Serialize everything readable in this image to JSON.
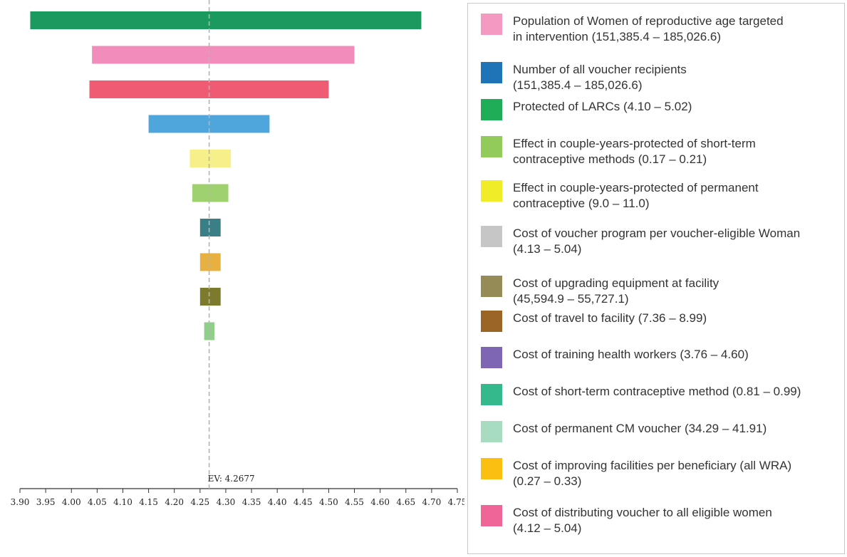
{
  "chart_data": {
    "type": "tornado",
    "title": "",
    "xlabel": "",
    "ylabel": "",
    "xlim": [
      3.9,
      4.75
    ],
    "ticks": [
      "3.90",
      "3.95",
      "4.00",
      "4.05",
      "4.10",
      "4.15",
      "4.20",
      "4.25",
      "4.30",
      "4.35",
      "4.40",
      "4.45",
      "4.50",
      "4.55",
      "4.60",
      "4.65",
      "4.70",
      "4.75"
    ],
    "ev_value": 4.2677,
    "ev_label": "EV: 4.2677",
    "bars": [
      {
        "name": "Protected of LARCs",
        "low": 3.92,
        "high": 4.68,
        "color": "#1a9a5e"
      },
      {
        "name": "Population of Women of reproductive age targeted in intervention",
        "low": 4.04,
        "high": 4.55,
        "color": "#f28cbb"
      },
      {
        "name": "Cost of distributing voucher to all eligible women",
        "low": 4.035,
        "high": 4.5,
        "color": "#ef5b72"
      },
      {
        "name": "Number of all voucher recipients",
        "low": 4.15,
        "high": 4.385,
        "color": "#4ea6dc"
      },
      {
        "name": "Effect in couple-years-protected of permanent contraceptive",
        "low": 4.23,
        "high": 4.31,
        "color": "#f7f08a"
      },
      {
        "name": "Effect in couple-years-protected of short-term contraceptive methods",
        "low": 4.235,
        "high": 4.305,
        "color": "#9fd26f"
      },
      {
        "name": "Cost of short-term contraceptive method",
        "low": 4.25,
        "high": 4.29,
        "color": "#3a7f86"
      },
      {
        "name": "Cost of improving facilities per beneficiary (all WRA)",
        "low": 4.25,
        "high": 4.29,
        "color": "#e8b040"
      },
      {
        "name": "Cost of upgrading equipment at facility",
        "low": 4.25,
        "high": 4.29,
        "color": "#7c7a2c"
      },
      {
        "name": "Cost of permanent CM voucher",
        "low": 4.258,
        "high": 4.278,
        "color": "#8fcf8a"
      }
    ]
  },
  "legend": [
    {
      "label": "Population of Women of reproductive age targeted\nin intervention (151,385.4 – 185,026.6)",
      "color": "#f49ac1"
    },
    {
      "label": "Number of all voucher recipients\n(151,385.4 – 185,026.6)",
      "color": "#1f74b8"
    },
    {
      "label": "Protected of LARCs (4.10 – 5.02)",
      "color": "#1fae57"
    },
    {
      "label": "Effect in couple-years-protected of short-term\ncontraceptive methods (0.17 – 0.21)",
      "color": "#92cb5a"
    },
    {
      "label": "Effect in couple-years-protected of permanent\ncontraceptive (9.0 – 11.0)",
      "color": "#f0ec28"
    },
    {
      "label": "Cost of voucher program per voucher-eligible Woman\n(4.13 – 5.04)",
      "color": "#c6c6c6"
    },
    {
      "label": "Cost of upgrading equipment at facility\n(45,594.9 – 55,727.1)",
      "color": "#958b56"
    },
    {
      "label": "Cost of travel to facility (7.36 – 8.99)",
      "color": "#9b6526"
    },
    {
      "label": "Cost of training health workers (3.76 – 4.60)",
      "color": "#7e66b4"
    },
    {
      "label": "Cost of short-term contraceptive method (0.81 – 0.99)",
      "color": "#34b98d"
    },
    {
      "label": "Cost of permanent CM voucher (34.29 – 41.91)",
      "color": "#a8dcc0"
    },
    {
      "label": "Cost of improving facilities per beneficiary (all WRA)\n(0.27 – 0.33)",
      "color": "#fbbf12"
    },
    {
      "label": "Cost of distributing voucher to all eligible women\n(4.12 – 5.04)",
      "color": "#ef6597"
    }
  ]
}
